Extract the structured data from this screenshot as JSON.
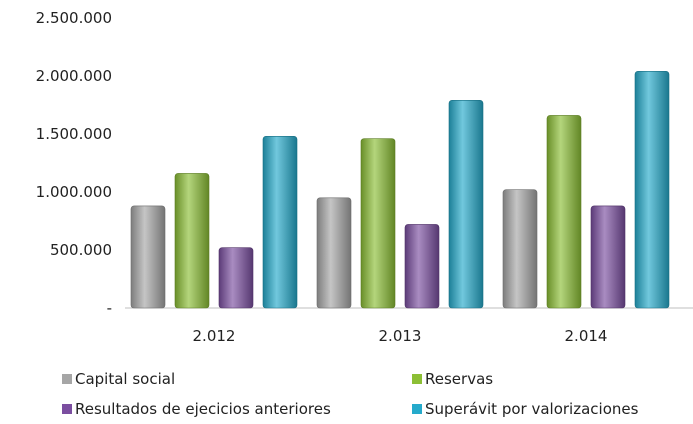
{
  "chart_data": {
    "type": "bar",
    "title": "",
    "xlabel": "",
    "ylabel": "",
    "categories": [
      "2.012",
      "2.013",
      "2.014"
    ],
    "ylim": [
      0,
      2500000
    ],
    "yticks": [
      0,
      500000,
      1000000,
      1500000,
      2000000,
      2500000
    ],
    "ytick_labels": [
      "-",
      "500.000",
      "1.000.000",
      "1.500.000",
      "2.000.000",
      "2.500.000"
    ],
    "grid": false,
    "legend_position": "bottom",
    "series": [
      {
        "name": "Capital social",
        "color": "#a6a6a6",
        "values": [
          880000,
          950000,
          1020000
        ]
      },
      {
        "name": "Reservas",
        "color": "#8cbf35",
        "values": [
          1160000,
          1460000,
          1660000
        ]
      },
      {
        "name": "Resultados de ejecicios anteriores",
        "color": "#7b4ea0",
        "values": [
          520000,
          720000,
          880000
        ]
      },
      {
        "name": "Superávit  por valorizaciones",
        "color": "#25aacb",
        "values": [
          1480000,
          1790000,
          2040000
        ]
      }
    ]
  }
}
